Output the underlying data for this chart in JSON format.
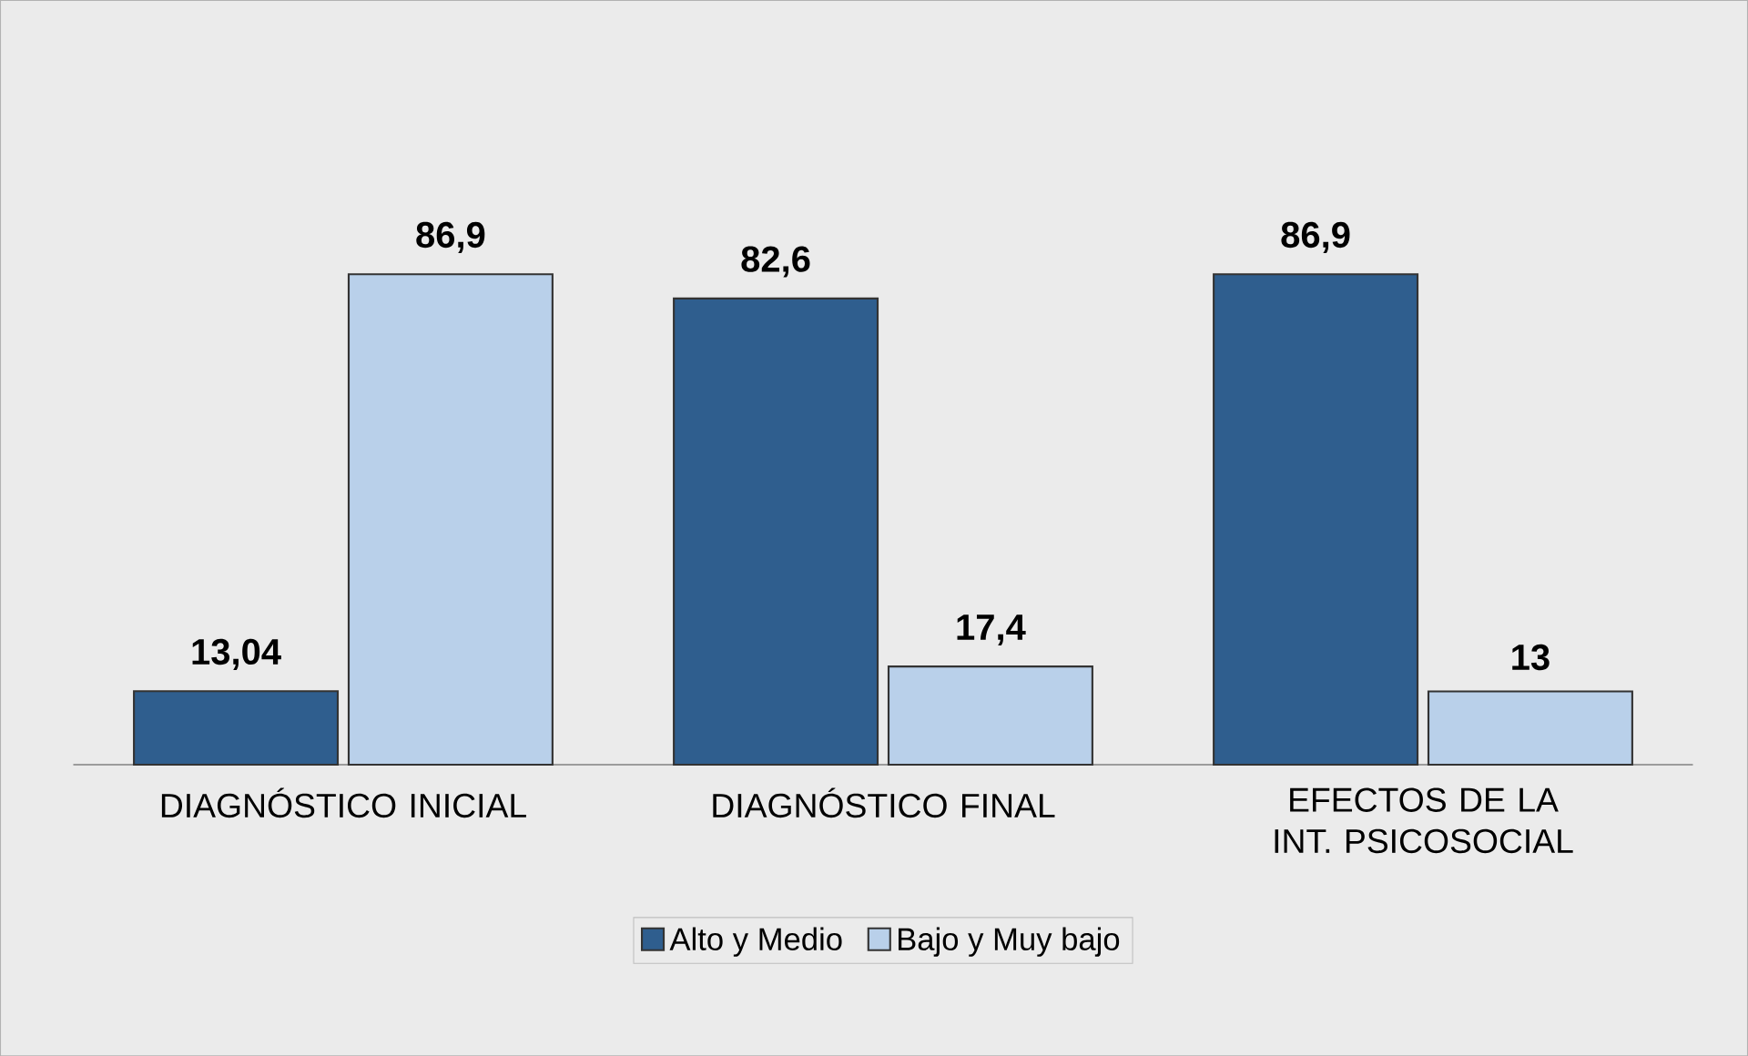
{
  "chart_data": {
    "type": "bar",
    "categories": [
      "DIAGNÓSTICO INICIAL",
      "DIAGNÓSTICO FINAL",
      "EFECTOS DE LA INT. PSICOSOCIAL"
    ],
    "series": [
      {
        "name": "Alto y Medio",
        "color": "#2f5e8e",
        "values": [
          13.04,
          82.6,
          86.9
        ],
        "value_labels": [
          "13,04",
          "82,6",
          "86,9"
        ]
      },
      {
        "name": "Bajo y Muy bajo",
        "color": "#b9d0ea",
        "values": [
          86.9,
          17.4,
          13
        ],
        "value_labels": [
          "86,9",
          "17,4",
          "13"
        ]
      }
    ],
    "legend": "bottom"
  }
}
